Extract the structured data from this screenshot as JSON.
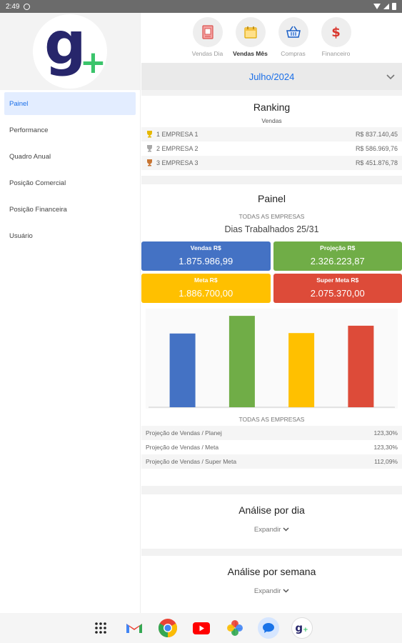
{
  "status": {
    "time": "2:49"
  },
  "sidebar": {
    "items": [
      {
        "label": "Painel",
        "active": true
      },
      {
        "label": "Performance"
      },
      {
        "label": "Quadro Anual"
      },
      {
        "label": "Posição Comercial"
      },
      {
        "label": "Posição Financeira"
      },
      {
        "label": "Usuário"
      }
    ]
  },
  "topnav": {
    "tabs": [
      {
        "label": "Vendas Dia",
        "icon": "receipt-icon"
      },
      {
        "label": "Vendas Mês",
        "icon": "calendar-icon",
        "active": true
      },
      {
        "label": "Compras",
        "icon": "basket-icon"
      },
      {
        "label": "Financeiro",
        "icon": "dollar-icon"
      }
    ]
  },
  "month": {
    "label": "Julho/2024"
  },
  "ranking": {
    "title": "Ranking",
    "subtitle": "Vendas",
    "rows": [
      {
        "pos": "1",
        "name": "EMPRESA 1",
        "value": "R$ 837.140,45",
        "trophy": "gold"
      },
      {
        "pos": "2",
        "name": "EMPRESA 2",
        "value": "R$ 586.969,76",
        "trophy": "silver"
      },
      {
        "pos": "3",
        "name": "EMPRESA 3",
        "value": "R$ 451.876,78",
        "trophy": "bronze"
      }
    ]
  },
  "painel": {
    "title": "Painel",
    "scope": "TODAS AS EMPRESAS",
    "dias": "Dias Trabalhados 25/31",
    "kpis": [
      {
        "label": "Vendas R$",
        "value": "1.875.986,99",
        "color": "#4472c4"
      },
      {
        "label": "Projeção R$",
        "value": "2.326.223,87",
        "color": "#70ad47"
      },
      {
        "label": "Meta R$",
        "value": "1.886.700,00",
        "color": "#ffc000"
      },
      {
        "label": "Super Meta R$",
        "value": "2.075.370,00",
        "color": "#dd4b39"
      }
    ],
    "chart_scope": "TODAS AS EMPRESAS",
    "proj_rows": [
      {
        "label": "Projeção de Vendas / Planej",
        "value": "123,30%"
      },
      {
        "label": "Projeção de Vendas / Meta",
        "value": "123,30%"
      },
      {
        "label": "Projeção de Vendas / Super Meta",
        "value": "112,09%"
      }
    ]
  },
  "chart_data": {
    "type": "bar",
    "categories": [
      "Vendas R$",
      "Projeção R$",
      "Meta R$",
      "Super Meta R$"
    ],
    "values": [
      1875986.99,
      2326223.87,
      1886700.0,
      2075370.0
    ],
    "colors": [
      "#4472c4",
      "#70ad47",
      "#ffc000",
      "#dd4b39"
    ],
    "ylim": [
      0,
      2400000
    ],
    "grid": false,
    "title": "",
    "xlabel": "",
    "ylabel": ""
  },
  "analise_dia": {
    "title": "Análise por dia",
    "expand": "Expandir"
  },
  "analise_semana": {
    "title": "Análise por semana",
    "expand": "Expandir"
  },
  "dock": {
    "apps": [
      "app-grid-icon",
      "gmail-icon",
      "chrome-icon",
      "youtube-icon",
      "photos-icon",
      "messages-icon",
      "gplus-app-icon"
    ]
  }
}
